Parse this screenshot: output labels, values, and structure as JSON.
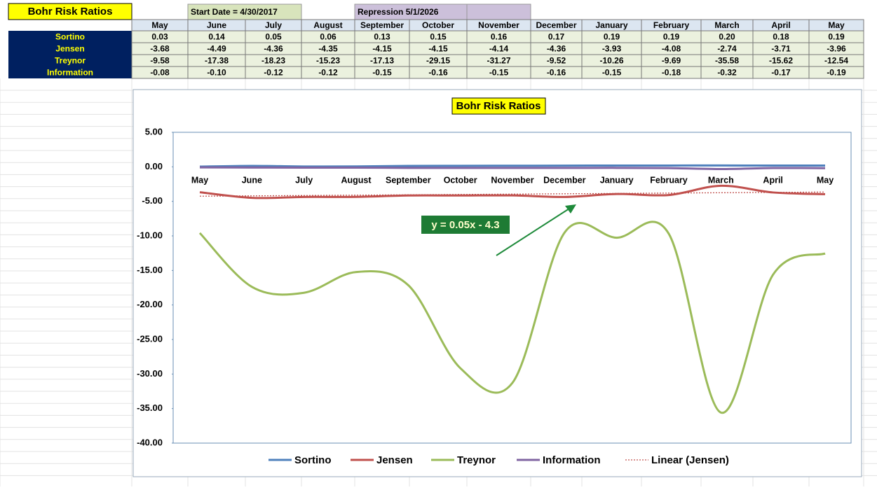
{
  "sheet": {
    "title": "Bohr Risk Ratios",
    "start_date": "Start Date = 4/30/2017",
    "repression": "Repression  5/1/2026",
    "table": {
      "header": [
        "May",
        "June",
        "July",
        "August",
        "September",
        "October",
        "November",
        "December",
        "January",
        "February",
        "March",
        "April",
        "May"
      ],
      "rows": [
        {
          "label": "Sortino",
          "cells": [
            "0.03",
            "0.14",
            "0.05",
            "0.06",
            "0.13",
            "0.15",
            "0.16",
            "0.17",
            "0.19",
            "0.19",
            "0.20",
            "0.18",
            "0.19"
          ]
        },
        {
          "label": "Jensen",
          "cells": [
            "-3.68",
            "-4.49",
            "-4.36",
            "-4.35",
            "-4.15",
            "-4.15",
            "-4.14",
            "-4.36",
            "-3.93",
            "-4.08",
            "-2.74",
            "-3.71",
            "-3.96"
          ]
        },
        {
          "label": "Treynor",
          "cells": [
            "-9.58",
            "-17.38",
            "-18.23",
            "-15.23",
            "-17.13",
            "-29.15",
            "-31.27",
            "-9.52",
            "-10.26",
            "-9.69",
            "-35.58",
            "-15.62",
            "-12.54"
          ]
        },
        {
          "label": "Information",
          "cells": [
            "-0.08",
            "-0.10",
            "-0.12",
            "-0.12",
            "-0.15",
            "-0.16",
            "-0.15",
            "-0.16",
            "-0.15",
            "-0.18",
            "-0.32",
            "-0.17",
            "-0.19"
          ]
        }
      ]
    }
  },
  "chart_data": {
    "type": "line",
    "title": "Bohr Risk Ratios",
    "categories": [
      "May",
      "June",
      "July",
      "August",
      "September",
      "October",
      "November",
      "December",
      "January",
      "February",
      "March",
      "April",
      "May"
    ],
    "series": [
      {
        "name": "Sortino",
        "color": "#4f81bd",
        "values": [
          0.03,
          0.14,
          0.05,
          0.06,
          0.13,
          0.15,
          0.16,
          0.17,
          0.19,
          0.19,
          0.2,
          0.18,
          0.19
        ]
      },
      {
        "name": "Jensen",
        "color": "#c0504d",
        "values": [
          -3.68,
          -4.49,
          -4.36,
          -4.35,
          -4.15,
          -4.15,
          -4.14,
          -4.36,
          -3.93,
          -4.08,
          -2.74,
          -3.71,
          -3.96
        ]
      },
      {
        "name": "Treynor",
        "color": "#9bbb59",
        "values": [
          -9.58,
          -17.38,
          -18.23,
          -15.23,
          -17.13,
          -29.15,
          -31.27,
          -9.52,
          -10.26,
          -9.69,
          -35.58,
          -15.62,
          -12.54
        ]
      },
      {
        "name": "Information",
        "color": "#8064a2",
        "values": [
          -0.08,
          -0.1,
          -0.12,
          -0.12,
          -0.15,
          -0.16,
          -0.15,
          -0.16,
          -0.15,
          -0.18,
          -0.32,
          -0.17,
          -0.19
        ]
      },
      {
        "name": "Linear (Jensen)",
        "color": "#c0504d",
        "dashed": true,
        "values": [
          -4.25,
          -4.2,
          -4.15,
          -4.1,
          -4.05,
          -4.0,
          -3.95,
          -3.9,
          -3.85,
          -3.8,
          -3.75,
          -3.7,
          -3.65
        ]
      }
    ],
    "annotation": "y = 0.05x - 4.3",
    "ylim": [
      -40,
      5
    ],
    "yticks": [
      {
        "value": 5,
        "label": "5.00"
      },
      {
        "value": 0,
        "label": "0.00"
      },
      {
        "value": -5,
        "label": "-5.00"
      },
      {
        "value": -10,
        "label": "-10.00"
      },
      {
        "value": -15,
        "label": "-15.00"
      },
      {
        "value": -20,
        "label": "-20.00"
      },
      {
        "value": -25,
        "label": "-25.00"
      },
      {
        "value": -30,
        "label": "-30.00"
      },
      {
        "value": -35,
        "label": "-35.00"
      },
      {
        "value": -40,
        "label": "-40.00"
      }
    ],
    "smooth": true,
    "legend": "bottom"
  }
}
